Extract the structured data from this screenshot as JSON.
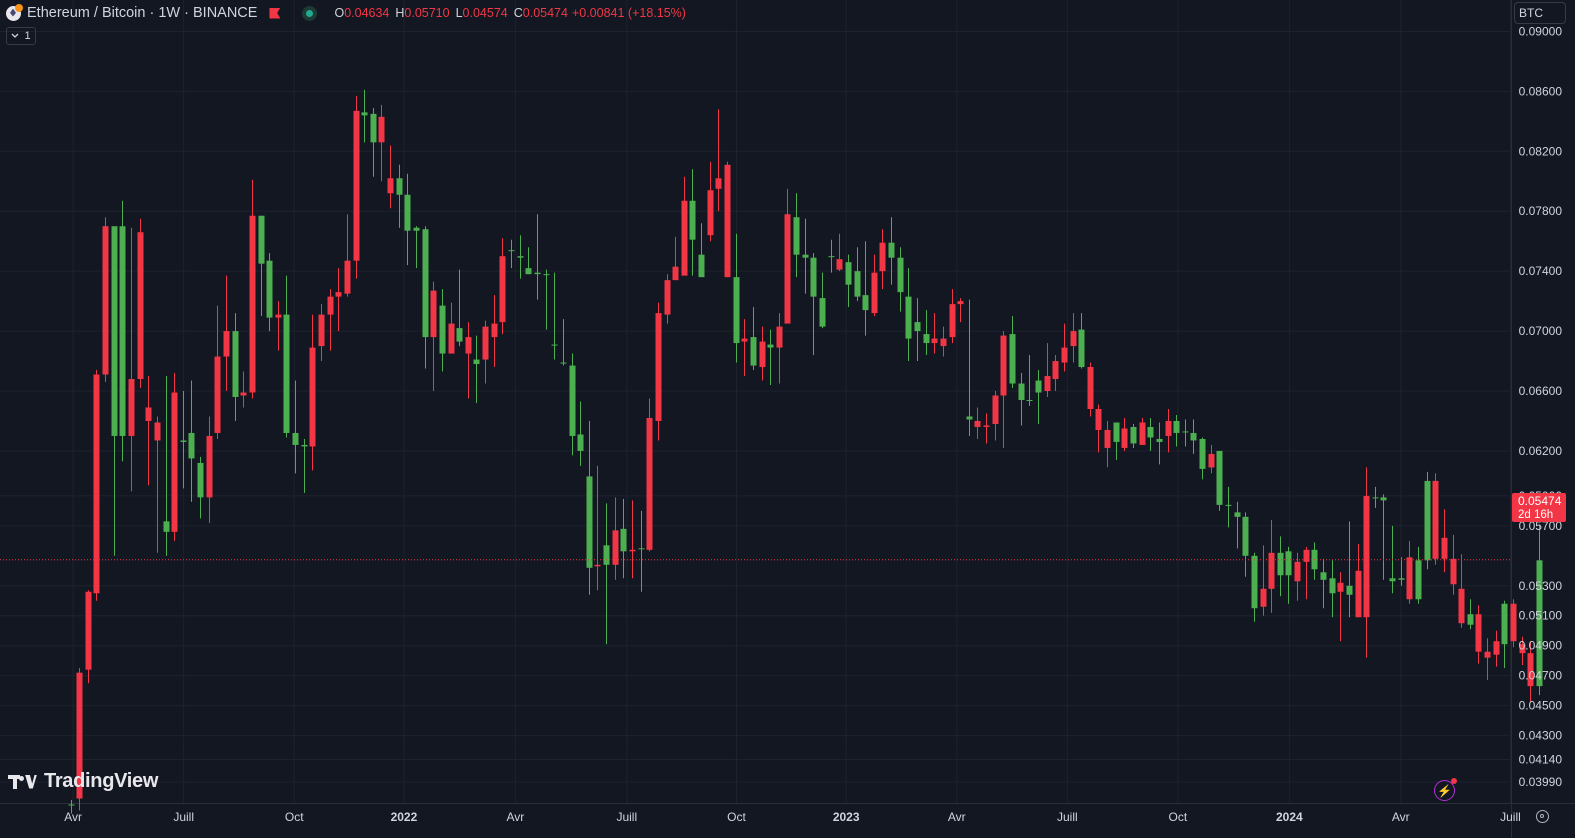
{
  "legend": {
    "title": "Ethereum / Bitcoin · 1W · BINANCE",
    "open_label": "O",
    "open": "0.04634",
    "high_label": "H",
    "high": "0.05710",
    "low_label": "L",
    "low": "0.04574",
    "close_label": "C",
    "close": "0.05474",
    "change": "+0.00841 (+18.15%)"
  },
  "collapse_button": {
    "label": "1"
  },
  "currency_button": {
    "label": "BTC"
  },
  "price_label": {
    "price": "0.05474",
    "countdown": "2d 16h"
  },
  "logo": {
    "text": "TradingView"
  },
  "colors": {
    "background": "#131722",
    "up": "#4caf50",
    "down": "#f23645",
    "grid": "#1e222d",
    "text": "#d1d4dc",
    "axis_border": "#2a2e39"
  },
  "chart_data": {
    "type": "candlestick",
    "timeframe": "1W",
    "ylim": [
      0.0385,
      0.0921
    ],
    "y_ticks": [
      {
        "label": "0.03990",
        "value": 0.0399
      },
      {
        "label": "0.04140",
        "value": 0.0414
      },
      {
        "label": "0.04300",
        "value": 0.043
      },
      {
        "label": "0.04500",
        "value": 0.045
      },
      {
        "label": "0.04700",
        "value": 0.047
      },
      {
        "label": "0.04900",
        "value": 0.049
      },
      {
        "label": "0.05100",
        "value": 0.051
      },
      {
        "label": "0.05300",
        "value": 0.053
      },
      {
        "label": "0.05700",
        "value": 0.057
      },
      {
        "label": "0.05900",
        "value": 0.059
      },
      {
        "label": "0.06200",
        "value": 0.062
      },
      {
        "label": "0.06600",
        "value": 0.066
      },
      {
        "label": "0.07000",
        "value": 0.07
      },
      {
        "label": "0.07400",
        "value": 0.074
      },
      {
        "label": "0.07800",
        "value": 0.078
      },
      {
        "label": "0.08200",
        "value": 0.082
      },
      {
        "label": "0.08600",
        "value": 0.086
      },
      {
        "label": "0.09000",
        "value": 0.09
      }
    ],
    "x_ticks": [
      {
        "label": "Avr",
        "bar": 0.3,
        "bold": false
      },
      {
        "label": "Juill",
        "bar": 13.1,
        "bold": false
      },
      {
        "label": "Oct",
        "bar": 25.9,
        "bold": false
      },
      {
        "label": "2022",
        "bar": 38.6,
        "bold": true
      },
      {
        "label": "Avr",
        "bar": 51.5,
        "bold": false
      },
      {
        "label": "Juill",
        "bar": 64.4,
        "bold": false
      },
      {
        "label": "Oct",
        "bar": 77.1,
        "bold": false
      },
      {
        "label": "2023",
        "bar": 89.8,
        "bold": true
      },
      {
        "label": "Avr",
        "bar": 102.6,
        "bold": false
      },
      {
        "label": "Juill",
        "bar": 115.4,
        "bold": false
      },
      {
        "label": "Oct",
        "bar": 128.2,
        "bold": false
      },
      {
        "label": "2024",
        "bar": 141.1,
        "bold": true
      },
      {
        "label": "Avr",
        "bar": 154.0,
        "bold": false
      },
      {
        "label": "Juill",
        "bar": 166.7,
        "bold": false
      }
    ],
    "last_price": 0.05474,
    "ohlc": [
      [
        0.0384,
        0.0387,
        0.0378,
        0.0384
      ],
      [
        0.0472,
        0.0475,
        0.038,
        0.0388
      ],
      [
        0.0526,
        0.0527,
        0.0465,
        0.0474
      ],
      [
        0.0671,
        0.0674,
        0.052,
        0.0525
      ],
      [
        0.077,
        0.0776,
        0.0666,
        0.0671
      ],
      [
        0.063,
        0.0768,
        0.055,
        0.077
      ],
      [
        0.063,
        0.0787,
        0.0613,
        0.077
      ],
      [
        0.0668,
        0.0769,
        0.0593,
        0.063
      ],
      [
        0.0766,
        0.0775,
        0.0662,
        0.0668
      ],
      [
        0.0649,
        0.067,
        0.0597,
        0.064
      ],
      [
        0.0639,
        0.0643,
        0.0552,
        0.0627
      ],
      [
        0.0566,
        0.067,
        0.055,
        0.0573
      ],
      [
        0.0659,
        0.0672,
        0.056,
        0.0566
      ],
      [
        0.0626,
        0.066,
        0.0595,
        0.0627
      ],
      [
        0.0615,
        0.0667,
        0.0586,
        0.0632
      ],
      [
        0.0589,
        0.0616,
        0.0575,
        0.0612
      ],
      [
        0.063,
        0.0643,
        0.0572,
        0.0589
      ],
      [
        0.0683,
        0.0717,
        0.0628,
        0.0632
      ],
      [
        0.07,
        0.0737,
        0.066,
        0.0683
      ],
      [
        0.0656,
        0.0712,
        0.064,
        0.07
      ],
      [
        0.0659,
        0.0673,
        0.0649,
        0.0657
      ],
      [
        0.0777,
        0.0801,
        0.0655,
        0.0659
      ],
      [
        0.0745,
        0.0777,
        0.071,
        0.0777
      ],
      [
        0.0709,
        0.0752,
        0.07,
        0.0747
      ],
      [
        0.0711,
        0.072,
        0.0687,
        0.0709
      ],
      [
        0.0632,
        0.0737,
        0.0629,
        0.0711
      ],
      [
        0.0624,
        0.0667,
        0.0605,
        0.0632
      ],
      [
        0.0623,
        0.0628,
        0.0592,
        0.0624
      ],
      [
        0.0689,
        0.0711,
        0.0607,
        0.0623
      ],
      [
        0.0711,
        0.0718,
        0.068,
        0.069
      ],
      [
        0.0723,
        0.0728,
        0.0687,
        0.0711
      ],
      [
        0.0726,
        0.0742,
        0.07,
        0.0723
      ],
      [
        0.0747,
        0.0778,
        0.0723,
        0.0725
      ],
      [
        0.0847,
        0.0857,
        0.0735,
        0.0747
      ],
      [
        0.0844,
        0.0861,
        0.0826,
        0.0846
      ],
      [
        0.0826,
        0.0849,
        0.0803,
        0.0845
      ],
      [
        0.0843,
        0.0851,
        0.08,
        0.0826
      ],
      [
        0.0802,
        0.0824,
        0.0782,
        0.0792
      ],
      [
        0.0791,
        0.0811,
        0.0769,
        0.0802
      ],
      [
        0.0767,
        0.0805,
        0.0744,
        0.0791
      ],
      [
        0.0767,
        0.077,
        0.0742,
        0.0769
      ],
      [
        0.0696,
        0.077,
        0.0675,
        0.0768
      ],
      [
        0.0727,
        0.0733,
        0.066,
        0.0696
      ],
      [
        0.0685,
        0.0728,
        0.0673,
        0.0717
      ],
      [
        0.0705,
        0.0719,
        0.0685,
        0.0685
      ],
      [
        0.0693,
        0.0741,
        0.069,
        0.0702
      ],
      [
        0.0696,
        0.0706,
        0.0655,
        0.0685
      ],
      [
        0.0678,
        0.0697,
        0.0652,
        0.0681
      ],
      [
        0.0703,
        0.0707,
        0.0665,
        0.0681
      ],
      [
        0.0705,
        0.0724,
        0.0676,
        0.0696
      ],
      [
        0.075,
        0.0762,
        0.0698,
        0.0706
      ],
      [
        0.0754,
        0.0761,
        0.0742,
        0.0754
      ],
      [
        0.0749,
        0.0764,
        0.0735,
        0.075
      ],
      [
        0.0738,
        0.0756,
        0.0738,
        0.0742
      ],
      [
        0.0738,
        0.0778,
        0.0721,
        0.0739
      ],
      [
        0.0738,
        0.0741,
        0.0701,
        0.0738
      ],
      [
        0.0691,
        0.0739,
        0.0681,
        0.0691
      ],
      [
        0.0679,
        0.0708,
        0.0677,
        0.0679
      ],
      [
        0.063,
        0.0685,
        0.0617,
        0.0677
      ],
      [
        0.062,
        0.0653,
        0.061,
        0.0631
      ],
      [
        0.0542,
        0.064,
        0.0524,
        0.0603
      ],
      [
        0.0544,
        0.061,
        0.0527,
        0.0543
      ],
      [
        0.0544,
        0.0585,
        0.0491,
        0.0557
      ],
      [
        0.0567,
        0.0589,
        0.0534,
        0.0544
      ],
      [
        0.0553,
        0.0588,
        0.0535,
        0.0568
      ],
      [
        0.0554,
        0.0587,
        0.0535,
        0.0553
      ],
      [
        0.0555,
        0.058,
        0.0526,
        0.0555
      ],
      [
        0.0642,
        0.0655,
        0.0553,
        0.0554
      ],
      [
        0.0712,
        0.0719,
        0.0627,
        0.064
      ],
      [
        0.0734,
        0.0738,
        0.0705,
        0.0711
      ],
      [
        0.0743,
        0.0763,
        0.0735,
        0.0734
      ],
      [
        0.0787,
        0.0803,
        0.0742,
        0.0737
      ],
      [
        0.0761,
        0.0808,
        0.0737,
        0.0787
      ],
      [
        0.0736,
        0.0772,
        0.0741,
        0.0751
      ],
      [
        0.0794,
        0.0813,
        0.076,
        0.0764
      ],
      [
        0.0802,
        0.0848,
        0.078,
        0.0795
      ],
      [
        0.0811,
        0.0813,
        0.0736,
        0.0736
      ],
      [
        0.0692,
        0.0765,
        0.0679,
        0.0736
      ],
      [
        0.0695,
        0.0708,
        0.067,
        0.0693
      ],
      [
        0.0677,
        0.0716,
        0.0674,
        0.0696
      ],
      [
        0.0693,
        0.0703,
        0.0667,
        0.0676
      ],
      [
        0.0689,
        0.0701,
        0.0664,
        0.0691
      ],
      [
        0.0703,
        0.0712,
        0.0665,
        0.0689
      ],
      [
        0.0778,
        0.0795,
        0.0705,
        0.0705
      ],
      [
        0.0751,
        0.0792,
        0.0736,
        0.0776
      ],
      [
        0.0749,
        0.0775,
        0.0725,
        0.0751
      ],
      [
        0.0723,
        0.0752,
        0.0684,
        0.0749
      ],
      [
        0.0703,
        0.0739,
        0.0702,
        0.0722
      ],
      [
        0.075,
        0.0761,
        0.0739,
        0.075
      ],
      [
        0.0748,
        0.0765,
        0.074,
        0.0741
      ],
      [
        0.0731,
        0.0751,
        0.0716,
        0.0746
      ],
      [
        0.0723,
        0.0756,
        0.072,
        0.074
      ],
      [
        0.0714,
        0.076,
        0.0697,
        0.0724
      ],
      [
        0.0739,
        0.0751,
        0.071,
        0.0712
      ],
      [
        0.0759,
        0.0768,
        0.0728,
        0.074
      ],
      [
        0.0749,
        0.0776,
        0.0731,
        0.0759
      ],
      [
        0.0726,
        0.0756,
        0.0713,
        0.0749
      ],
      [
        0.0695,
        0.0742,
        0.068,
        0.0723
      ],
      [
        0.07,
        0.0722,
        0.068,
        0.0706
      ],
      [
        0.0692,
        0.0714,
        0.0684,
        0.0698
      ],
      [
        0.0695,
        0.0712,
        0.0685,
        0.0692
      ],
      [
        0.0695,
        0.0703,
        0.0683,
        0.069
      ],
      [
        0.0718,
        0.0728,
        0.0692,
        0.0696
      ],
      [
        0.072,
        0.0722,
        0.0706,
        0.0718
      ],
      [
        0.0641,
        0.0721,
        0.063,
        0.0643
      ],
      [
        0.064,
        0.0649,
        0.0628,
        0.0636
      ],
      [
        0.0637,
        0.0645,
        0.0625,
        0.0636
      ],
      [
        0.0657,
        0.066,
        0.0627,
        0.0638
      ],
      [
        0.0697,
        0.07,
        0.0622,
        0.0657
      ],
      [
        0.0665,
        0.071,
        0.0662,
        0.0698
      ],
      [
        0.0654,
        0.0672,
        0.0637,
        0.0665
      ],
      [
        0.0654,
        0.0684,
        0.065,
        0.0654
      ],
      [
        0.0659,
        0.0674,
        0.0638,
        0.0667
      ],
      [
        0.067,
        0.0692,
        0.0656,
        0.066
      ],
      [
        0.068,
        0.0684,
        0.066,
        0.0668
      ],
      [
        0.0689,
        0.0705,
        0.0673,
        0.0679
      ],
      [
        0.07,
        0.0712,
        0.0679,
        0.069
      ],
      [
        0.0676,
        0.0712,
        0.0675,
        0.0701
      ],
      [
        0.0676,
        0.0679,
        0.0643,
        0.0648
      ],
      [
        0.0648,
        0.0651,
        0.0619,
        0.0634
      ],
      [
        0.0634,
        0.064,
        0.0609,
        0.0622
      ],
      [
        0.0626,
        0.0637,
        0.0614,
        0.0639
      ],
      [
        0.0635,
        0.0642,
        0.062,
        0.0622
      ],
      [
        0.0625,
        0.0638,
        0.0622,
        0.0636
      ],
      [
        0.0639,
        0.0642,
        0.0629,
        0.0624
      ],
      [
        0.0629,
        0.0642,
        0.062,
        0.0636
      ],
      [
        0.0626,
        0.0639,
        0.0611,
        0.0628
      ],
      [
        0.064,
        0.0648,
        0.0619,
        0.063
      ],
      [
        0.0632,
        0.0644,
        0.0623,
        0.064
      ],
      [
        0.0633,
        0.0641,
        0.0623,
        0.0633
      ],
      [
        0.0627,
        0.0641,
        0.0618,
        0.0632
      ],
      [
        0.0608,
        0.0629,
        0.0601,
        0.0628
      ],
      [
        0.0618,
        0.0624,
        0.0605,
        0.0609
      ],
      [
        0.0584,
        0.062,
        0.058,
        0.062
      ],
      [
        0.0584,
        0.0596,
        0.0569,
        0.0584
      ],
      [
        0.0576,
        0.0586,
        0.0555,
        0.0579
      ],
      [
        0.055,
        0.0579,
        0.0536,
        0.0576
      ],
      [
        0.0515,
        0.0552,
        0.0506,
        0.055
      ],
      [
        0.0528,
        0.0557,
        0.051,
        0.0516
      ],
      [
        0.0552,
        0.0574,
        0.0512,
        0.0528
      ],
      [
        0.0537,
        0.0563,
        0.0523,
        0.0552
      ],
      [
        0.0537,
        0.0556,
        0.0518,
        0.0553
      ],
      [
        0.0546,
        0.0552,
        0.052,
        0.0533
      ],
      [
        0.0554,
        0.0556,
        0.0521,
        0.0546
      ],
      [
        0.0541,
        0.0559,
        0.0534,
        0.0554
      ],
      [
        0.0534,
        0.0548,
        0.0515,
        0.0539
      ],
      [
        0.0525,
        0.0547,
        0.0509,
        0.0535
      ],
      [
        0.0532,
        0.0539,
        0.0493,
        0.0526
      ],
      [
        0.0524,
        0.0573,
        0.0509,
        0.053
      ],
      [
        0.054,
        0.0558,
        0.0509,
        0.0509
      ],
      [
        0.059,
        0.0609,
        0.0482,
        0.0509
      ],
      [
        0.0589,
        0.0596,
        0.0582,
        0.0589
      ],
      [
        0.0587,
        0.0591,
        0.0534,
        0.0589
      ],
      [
        0.0533,
        0.057,
        0.0525,
        0.0535
      ],
      [
        0.0534,
        0.0549,
        0.053,
        0.0535
      ],
      [
        0.0549,
        0.056,
        0.0518,
        0.0521
      ],
      [
        0.0521,
        0.0556,
        0.0518,
        0.0547
      ],
      [
        0.0547,
        0.0606,
        0.0541,
        0.06
      ],
      [
        0.06,
        0.0605,
        0.0544,
        0.0548
      ],
      [
        0.0562,
        0.0581,
        0.0539,
        0.0548
      ],
      [
        0.0548,
        0.0564,
        0.0524,
        0.0531
      ],
      [
        0.0528,
        0.0551,
        0.0502,
        0.0505
      ],
      [
        0.0504,
        0.0521,
        0.0501,
        0.0511
      ],
      [
        0.0511,
        0.0517,
        0.0478,
        0.0486
      ],
      [
        0.0486,
        0.0495,
        0.0467,
        0.0482
      ],
      [
        0.0493,
        0.05,
        0.0476,
        0.0484
      ],
      [
        0.0491,
        0.052,
        0.0475,
        0.0518
      ],
      [
        0.0518,
        0.0521,
        0.0489,
        0.0493
      ],
      [
        0.0491,
        0.0496,
        0.0477,
        0.0485
      ],
      [
        0.0485,
        0.0493,
        0.0452,
        0.0463
      ],
      [
        0.0463,
        0.0571,
        0.0457,
        0.0547
      ]
    ]
  }
}
